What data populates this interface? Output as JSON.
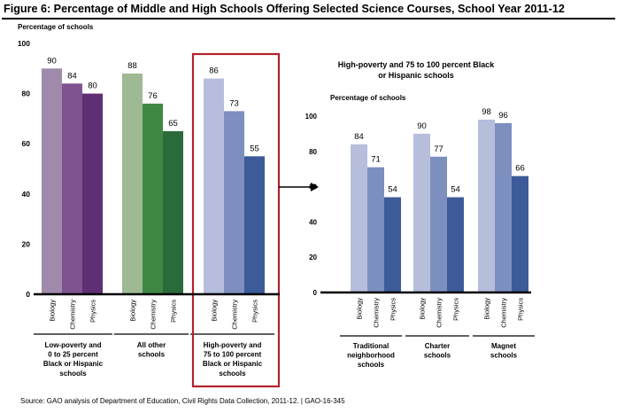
{
  "figure": {
    "title": "Figure 6: Percentage of Middle and High Schools Offering Selected Science Courses, School Year 2011-12",
    "source": "Source: GAO analysis of Department of Education, Civil Rights Data Collection, 2011-12.  |  GAO-16-345",
    "icons": [
      "arrow-right-icon"
    ]
  },
  "chart_data": [
    {
      "type": "bar",
      "title": "",
      "ylabel": "Percentage of schools",
      "ylim": [
        0,
        100
      ],
      "yticks": [
        0,
        20,
        40,
        60,
        80,
        100
      ],
      "categories": [
        "Biology",
        "Chemistry",
        "Physics"
      ],
      "groups": [
        {
          "label": "Low-poverty and 0 to 25 percent Black or Hispanic schools",
          "label_lines": [
            "Low-poverty and",
            "0 to 25 percent",
            "Black or Hispanic",
            "schools"
          ],
          "values": [
            90,
            84,
            80
          ],
          "colors": [
            "#a08aab",
            "#7e5490",
            "#5e2f74"
          ]
        },
        {
          "label": "All other schools",
          "label_lines": [
            "All other",
            "schools"
          ],
          "values": [
            88,
            76,
            65
          ],
          "colors": [
            "#9eb993",
            "#3f8843",
            "#2b6a3b"
          ]
        },
        {
          "label": "High-poverty and 75 to 100 percent Black or Hispanic schools",
          "label_lines": [
            "High-poverty and",
            "75 to 100 percent",
            "Black or Hispanic",
            "schools"
          ],
          "values": [
            86,
            73,
            55
          ],
          "colors": [
            "#b6bedb",
            "#7c8fbf",
            "#3c5b98"
          ],
          "highlighted": true,
          "highlight_color": "#b3232d"
        }
      ]
    },
    {
      "type": "bar",
      "title": "High-poverty and 75 to 100 percent Black or Hispanic schools",
      "title_lines": [
        "High-poverty and 75 to 100 percent Black",
        "or Hispanic schools"
      ],
      "ylabel": "Percentage of schools",
      "ylim": [
        0,
        100
      ],
      "yticks": [
        0,
        20,
        40,
        60,
        80,
        100
      ],
      "categories": [
        "Biology",
        "Chemistry",
        "Physics"
      ],
      "groups": [
        {
          "label": "Traditional neighborhood schools",
          "label_lines": [
            "Traditional",
            "neighborhood",
            "schools"
          ],
          "values": [
            84,
            71,
            54
          ],
          "colors": [
            "#b6bedb",
            "#7c8fbf",
            "#3c5b98"
          ]
        },
        {
          "label": "Charter schools",
          "label_lines": [
            "Charter",
            "schools"
          ],
          "values": [
            90,
            77,
            54
          ],
          "colors": [
            "#b6bedb",
            "#7c8fbf",
            "#3c5b98"
          ]
        },
        {
          "label": "Magnet schools",
          "label_lines": [
            "Magnet",
            "schools"
          ],
          "values": [
            98,
            96,
            66
          ],
          "colors": [
            "#b6bedb",
            "#7c8fbf",
            "#3c5b98"
          ]
        }
      ]
    }
  ]
}
